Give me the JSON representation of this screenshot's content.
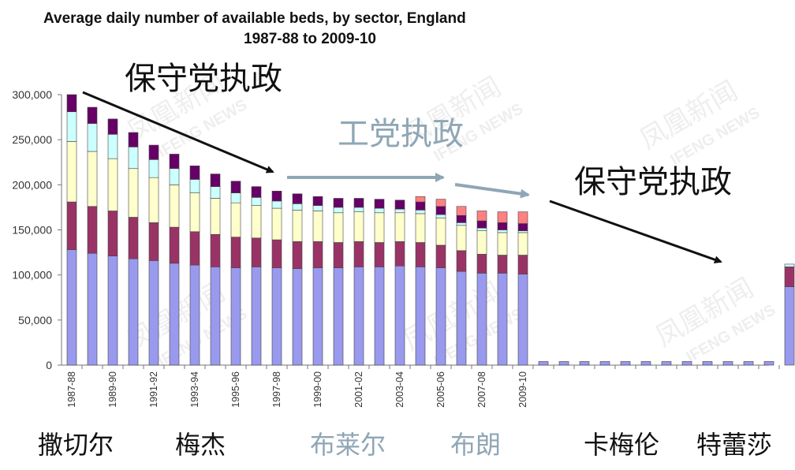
{
  "chart_data": {
    "type": "bar",
    "stacked": true,
    "title": "Average daily number of available beds, by sector, England",
    "subtitle": "1987-88 to 2009-10",
    "ylim": [
      0,
      300000
    ],
    "yticks": [
      "0",
      "50,000",
      "100,000",
      "150,000",
      "200,000",
      "250,000",
      "300,000"
    ],
    "ytick_values": [
      0,
      50000,
      100000,
      150000,
      200000,
      250000,
      300000
    ],
    "grid": false,
    "legend": "none",
    "categories": [
      "1987-88",
      "1988-89",
      "1989-90",
      "1990-91",
      "1991-92",
      "1992-93",
      "1993-94",
      "1994-95",
      "1995-96",
      "1996-97",
      "1997-98",
      "1998-99",
      "1999-00",
      "2000-01",
      "2001-02",
      "2002-03",
      "2003-04",
      "2004-05",
      "2005-06",
      "2006-07",
      "2007-08",
      "2008-09",
      "2009-10",
      "",
      "",
      "",
      "",
      "",
      "",
      "",
      "",
      "",
      "",
      "",
      "",
      ""
    ],
    "category_labels": {
      "0": "1987-88",
      "2": "1989-90",
      "4": "1991-92",
      "6": "1993-94",
      "8": "1995-96",
      "10": "1997-98",
      "12": "1999-00",
      "14": "2001-02",
      "16": "2003-04",
      "18": "2005-06",
      "20": "2007-08",
      "22": "2009-10"
    },
    "series": [
      {
        "color": "#9999ee",
        "values": [
          128000,
          124000,
          121000,
          118000,
          116000,
          113000,
          111000,
          109000,
          108000,
          109000,
          108000,
          107000,
          108000,
          108000,
          109000,
          109000,
          110000,
          109000,
          108000,
          104000,
          102000,
          102000,
          101000,
          4000,
          4000,
          4000,
          4000,
          4000,
          4000,
          4000,
          4000,
          4000,
          4000,
          4000,
          4000,
          87000
        ]
      },
      {
        "color": "#993366",
        "values": [
          53000,
          52000,
          50000,
          46000,
          42000,
          40000,
          37000,
          36000,
          34000,
          32000,
          31000,
          30000,
          29000,
          28000,
          28000,
          27000,
          27000,
          27000,
          25000,
          23000,
          21000,
          20000,
          21000,
          0,
          0,
          0,
          0,
          0,
          0,
          0,
          0,
          0,
          0,
          0,
          0,
          22000
        ]
      },
      {
        "color": "#ffffcc",
        "values": [
          67000,
          61000,
          58000,
          54000,
          50000,
          47000,
          43000,
          40000,
          38000,
          36000,
          35000,
          35000,
          34000,
          33000,
          33000,
          33000,
          32000,
          32000,
          30000,
          28000,
          26000,
          25000,
          25000,
          0,
          0,
          0,
          0,
          0,
          0,
          0,
          0,
          0,
          0,
          0,
          0,
          0
        ]
      },
      {
        "color": "#ccffff",
        "values": [
          33000,
          31000,
          27000,
          24000,
          20000,
          18000,
          15000,
          13000,
          11000,
          9000,
          8000,
          7000,
          6000,
          6000,
          5000,
          5000,
          4000,
          4000,
          4000,
          3000,
          3000,
          3000,
          2000,
          0,
          0,
          0,
          0,
          0,
          0,
          0,
          0,
          0,
          0,
          0,
          0,
          3000
        ]
      },
      {
        "color": "#660066",
        "values": [
          19000,
          18000,
          17000,
          16000,
          16000,
          16000,
          15000,
          14000,
          13000,
          12000,
          11000,
          11000,
          10000,
          10000,
          10000,
          10000,
          10000,
          9000,
          9000,
          8000,
          8000,
          8000,
          8000,
          0,
          0,
          0,
          0,
          0,
          0,
          0,
          0,
          0,
          0,
          0,
          0,
          0
        ]
      },
      {
        "color": "#ff8080",
        "values": [
          0,
          0,
          0,
          0,
          0,
          0,
          0,
          0,
          0,
          0,
          0,
          0,
          0,
          0,
          0,
          0,
          0,
          6000,
          8000,
          10000,
          11000,
          12000,
          13000,
          0,
          0,
          0,
          0,
          0,
          0,
          0,
          0,
          0,
          0,
          0,
          0,
          0
        ]
      }
    ]
  },
  "annotations": {
    "conservative_1": "保守党执政",
    "labour": "工党执政",
    "conservative_2": "保守党执政",
    "pm_thatcher": "撒切尔",
    "pm_major": "梅杰",
    "pm_blair": "布莱尔",
    "pm_brown": "布朗",
    "pm_cameron": "卡梅伦",
    "pm_may": "特蕾莎"
  },
  "watermark": {
    "cn": "凤凰新闻",
    "en": "IFENG NEWS"
  }
}
